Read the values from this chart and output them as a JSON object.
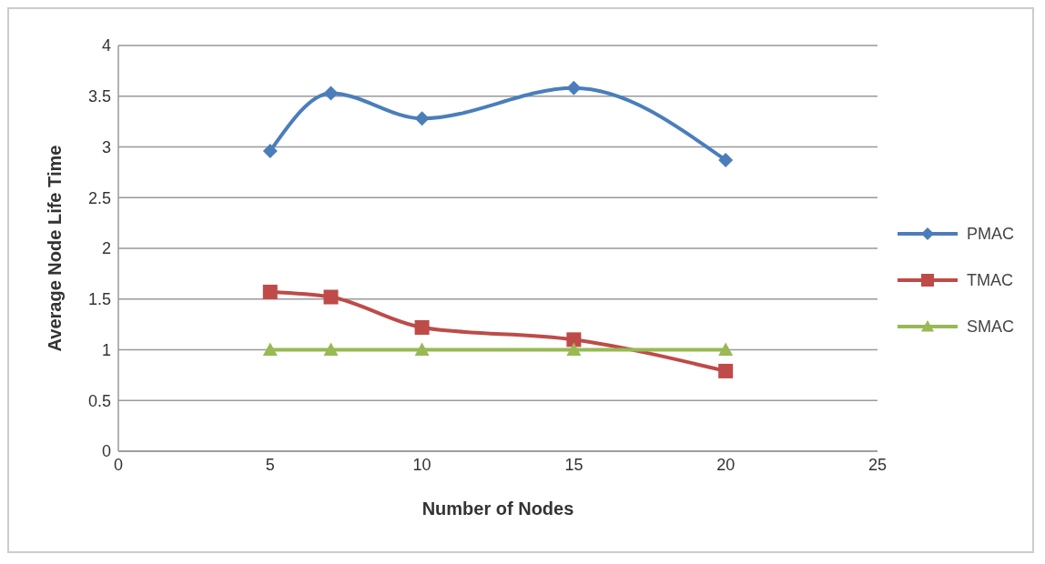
{
  "chart_data": {
    "type": "line",
    "xlabel": "Number of Nodes",
    "ylabel": "Average Node Life Time",
    "x": [
      5,
      7,
      10,
      15,
      20
    ],
    "series": [
      {
        "name": "PMAC",
        "color": "#4a7ebb",
        "marker": "diamond",
        "values": [
          2.96,
          3.53,
          3.28,
          3.58,
          2.87
        ]
      },
      {
        "name": "TMAC",
        "color": "#be4b48",
        "marker": "square",
        "values": [
          1.57,
          1.52,
          1.22,
          1.1,
          0.79
        ]
      },
      {
        "name": "SMAC",
        "color": "#98b954",
        "marker": "triangle",
        "values": [
          1,
          1,
          1,
          1,
          1
        ]
      }
    ],
    "xlim": [
      0,
      25
    ],
    "xticks": [
      0,
      5,
      10,
      15,
      20,
      25
    ],
    "ylim": [
      0,
      4
    ],
    "yticks": [
      0,
      0.5,
      1,
      1.5,
      2,
      2.5,
      3,
      3.5,
      4
    ],
    "grid": "y",
    "legend": "right"
  }
}
